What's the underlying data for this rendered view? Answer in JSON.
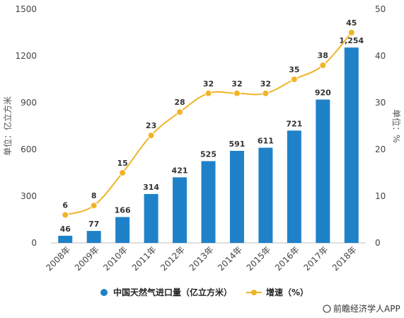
{
  "chart_data": {
    "type": "bar",
    "categories": [
      "2008年",
      "2009年",
      "2010年",
      "2011年",
      "2012年",
      "2013年",
      "2014年",
      "2015年",
      "2016年",
      "2017年",
      "2018年"
    ],
    "series": [
      {
        "name": "中国天然气进口量（亿立方米）",
        "type": "bar",
        "axis": "left",
        "values": [
          46,
          77,
          166,
          314,
          421,
          525,
          591,
          611,
          721,
          920,
          1254
        ],
        "labels": [
          "46",
          "77",
          "166",
          "314",
          "421",
          "525",
          "591",
          "611",
          "721",
          "920",
          "1,254"
        ]
      },
      {
        "name": "增速（%）",
        "type": "line",
        "axis": "right",
        "values": [
          6,
          8,
          15,
          23,
          28,
          32,
          32,
          32,
          35,
          38,
          45
        ],
        "labels": [
          "6",
          "8",
          "15",
          "23",
          "28",
          "32",
          "32",
          "32",
          "35",
          "38",
          "45"
        ]
      }
    ],
    "ylabel_left": "单位：亿立方米",
    "ylabel_right": "单位：%",
    "ylim_left": [
      0,
      1500
    ],
    "ylim_right": [
      0,
      50
    ],
    "yticks_left": [
      "0",
      "300",
      "600",
      "900",
      "1200",
      "1500"
    ],
    "yticks_right": [
      "0",
      "10",
      "20",
      "30",
      "40",
      "50"
    ],
    "grid": false,
    "legend_position": "bottom",
    "colors": {
      "bar": "#1f82c9",
      "line": "#f0b428"
    }
  },
  "source": "前瞻经济学人APP",
  "source_icon": "at-icon"
}
